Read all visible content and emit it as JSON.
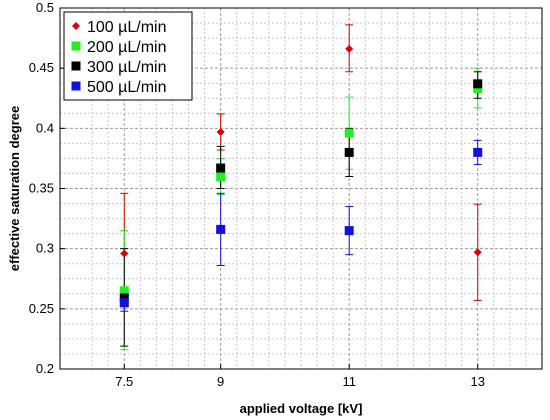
{
  "chart_data": {
    "type": "scatter",
    "xlabel": "applied voltage [kV]",
    "ylabel": "effective saturation degree",
    "xlim": [
      6.5,
      14.0
    ],
    "ylim": [
      0.2,
      0.5
    ],
    "x_ticks": [
      7.5,
      9,
      11,
      13
    ],
    "x_tick_labels": [
      "7.5",
      "9",
      "11",
      "13"
    ],
    "y_ticks": [
      0.2,
      0.25,
      0.3,
      0.35,
      0.4,
      0.45,
      0.5
    ],
    "y_tick_labels": [
      "0.2",
      "0.25",
      "0.3",
      "0.35",
      "0.4",
      "0.45",
      "0.5"
    ],
    "grid": true,
    "legend_position": "top-left",
    "series": [
      {
        "name": "100 µL/min",
        "color": "#dd0000",
        "marker": "diamond",
        "x": [
          7.5,
          9,
          11,
          13
        ],
        "y": [
          0.296,
          0.397,
          0.466,
          0.297
        ],
        "err_low": [
          0.296,
          0.382,
          0.447,
          0.257
        ],
        "err_high": [
          0.346,
          0.412,
          0.486,
          0.337
        ]
      },
      {
        "name": "200 µL/min",
        "color": "#22ee22",
        "marker": "square",
        "x": [
          7.5,
          9,
          11,
          13
        ],
        "y": [
          0.265,
          0.36,
          0.396,
          0.433
        ],
        "err_low": [
          0.216,
          0.345,
          0.366,
          0.417
        ],
        "err_high": [
          0.315,
          0.375,
          0.426,
          0.45
        ]
      },
      {
        "name": "300 µL/min",
        "color": "#000000",
        "marker": "square",
        "x": [
          7.5,
          9,
          11,
          13
        ],
        "y": [
          0.259,
          0.367,
          0.38,
          0.437
        ],
        "err_low": [
          0.219,
          0.35,
          0.36,
          0.425
        ],
        "err_high": [
          0.3,
          0.385,
          0.4,
          0.447
        ]
      },
      {
        "name": "500 µL/min",
        "color": "#1111dd",
        "marker": "square",
        "x": [
          7.5,
          9,
          11,
          13
        ],
        "y": [
          0.255,
          0.316,
          0.315,
          0.38
        ],
        "err_low": [
          0.248,
          0.286,
          0.295,
          0.37
        ],
        "err_high": [
          0.262,
          0.346,
          0.335,
          0.39
        ]
      }
    ]
  }
}
